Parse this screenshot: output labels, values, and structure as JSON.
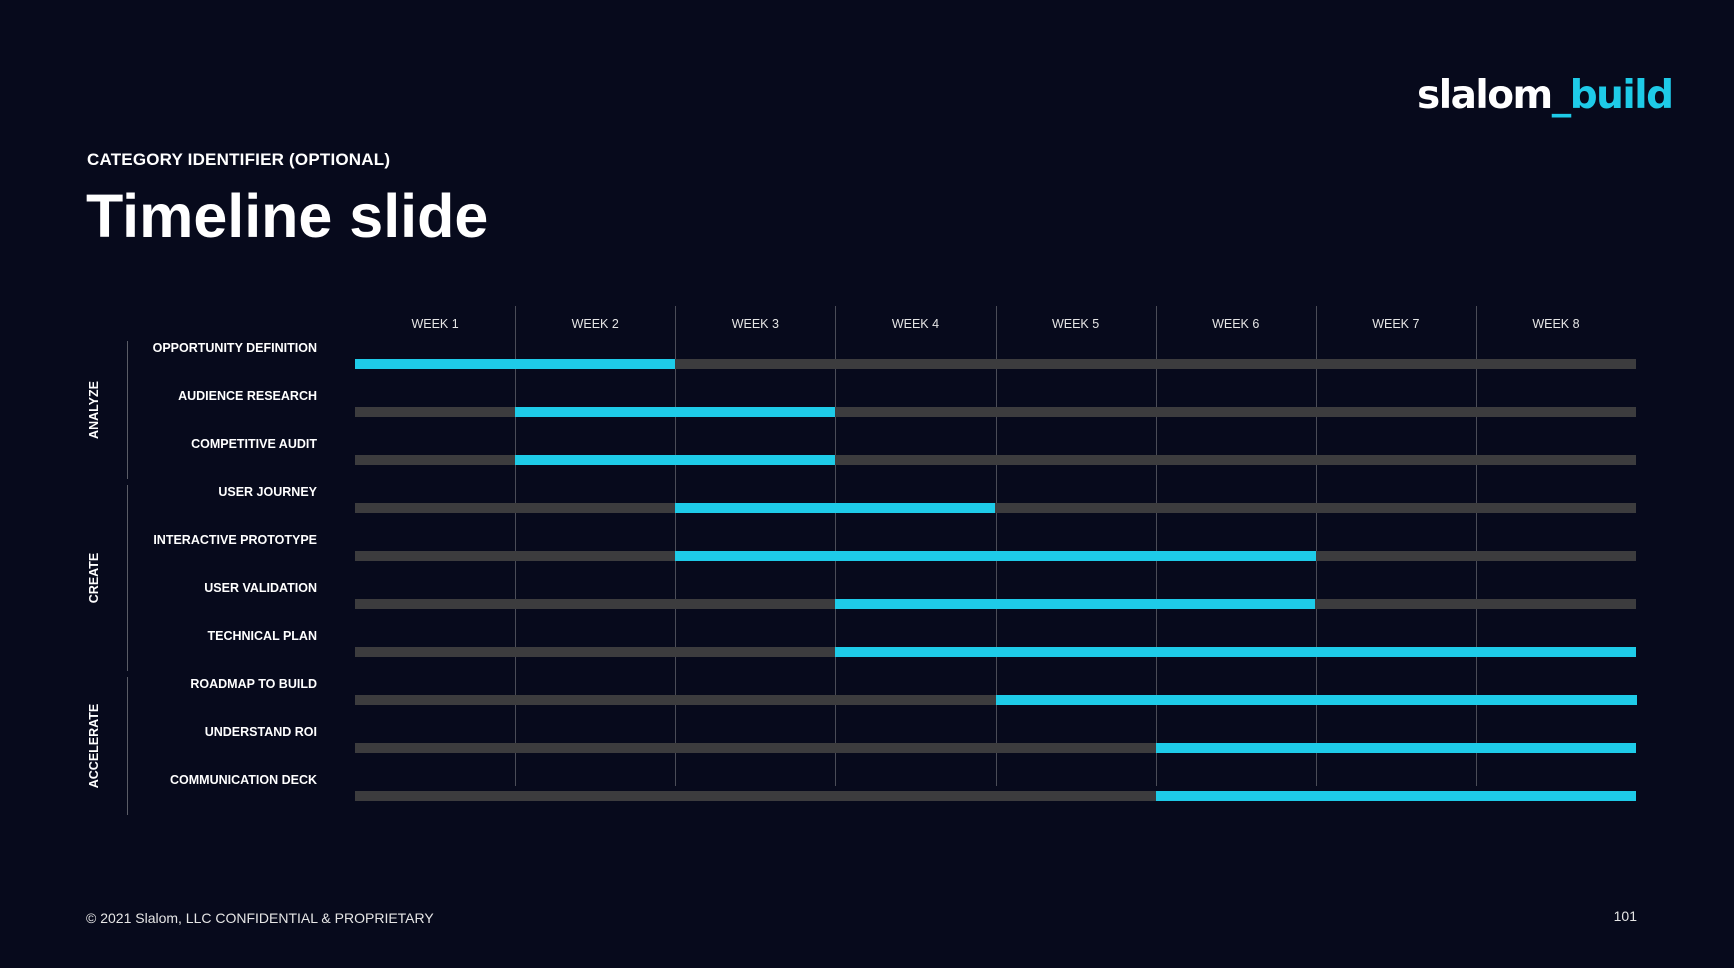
{
  "logo": {
    "part1": "slalom",
    "separator": "_",
    "part2": "build"
  },
  "category": "CATEGORY IDENTIFIER (OPTIONAL)",
  "title": "Timeline slide",
  "footer": "© 2021 Slalom, LLC CONFIDENTIAL & PROPRIETARY",
  "page_number": "101",
  "colors": {
    "background": "#070a1c",
    "accent": "#1ecbe8",
    "track": "#3c3c3e",
    "grid": "#4a4c57"
  },
  "chart_data": {
    "type": "gantt",
    "weeks": [
      "WEEK 1",
      "WEEK 2",
      "WEEK 3",
      "WEEK 4",
      "WEEK 5",
      "WEEK 6",
      "WEEK 7",
      "WEEK 8"
    ],
    "phases": [
      {
        "name": "ANALYZE",
        "first_task": 0,
        "last_task": 2
      },
      {
        "name": "CREATE",
        "first_task": 3,
        "last_task": 6
      },
      {
        "name": "ACCELERATE",
        "first_task": 7,
        "last_task": 9
      }
    ],
    "tasks": [
      {
        "label": "OPPORTUNITY DEFINITION",
        "start_week": 0,
        "end_week": 2
      },
      {
        "label": "AUDIENCE RESEARCH",
        "start_week": 1,
        "end_week": 3
      },
      {
        "label": "COMPETITIVE AUDIT",
        "start_week": 1,
        "end_week": 3
      },
      {
        "label": "USER JOURNEY",
        "start_week": 2,
        "end_week": 4
      },
      {
        "label": "INTERACTIVE PROTOTYPE",
        "start_week": 2,
        "end_week": 6
      },
      {
        "label": "USER VALIDATION",
        "start_week": 3,
        "end_week": 6
      },
      {
        "label": "TECHNICAL PLAN",
        "start_week": 3,
        "end_week": 8
      },
      {
        "label": "ROADMAP TO BUILD",
        "start_week": 4,
        "end_week": 8
      },
      {
        "label": "UNDERSTAND ROI",
        "start_week": 5,
        "end_week": 8
      },
      {
        "label": "COMMUNICATION DECK",
        "start_week": 5,
        "end_week": 8
      }
    ]
  }
}
